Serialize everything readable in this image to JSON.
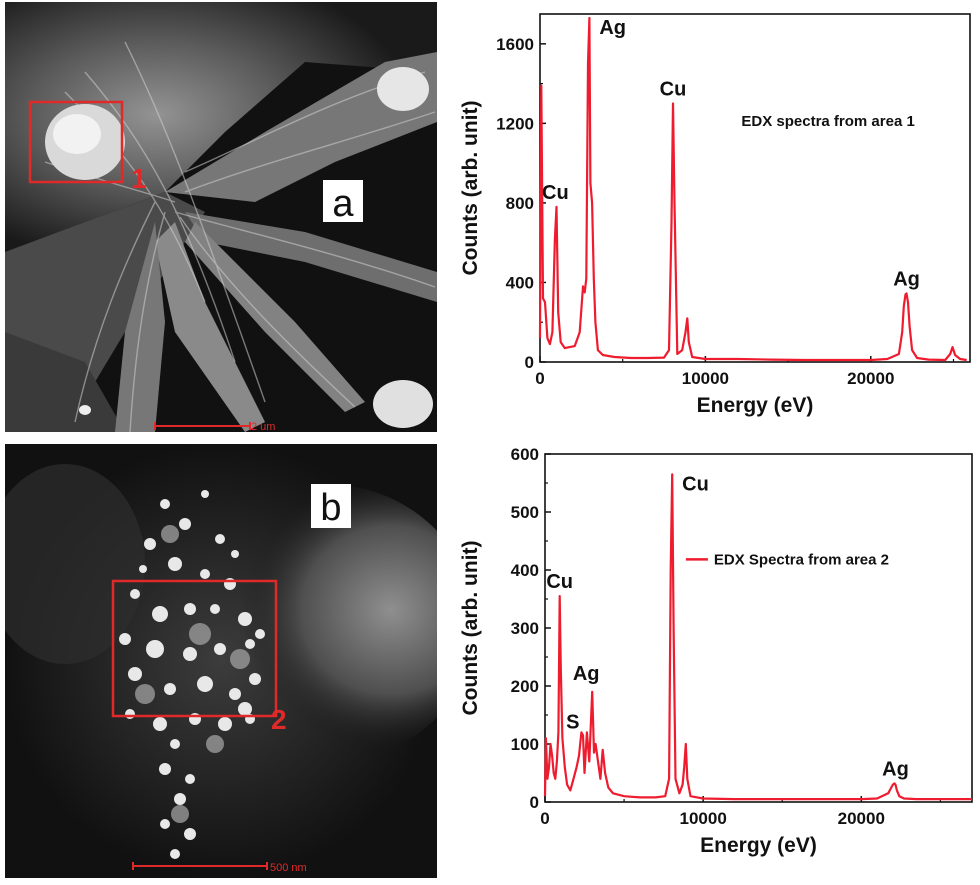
{
  "panel_a": {
    "letter": "a",
    "region_label": "1",
    "scale_bar_text": "2 um"
  },
  "panel_b": {
    "letter": "b",
    "region_label": "2",
    "scale_bar_text": "500 nm"
  },
  "colors": {
    "spectrum": "#ee1c2e",
    "region_box": "#e02a2a",
    "axis": "#111111"
  },
  "chart_data": [
    {
      "type": "line",
      "title": "",
      "xlabel": "Energy (eV)",
      "ylabel": "Counts (arb. unit)",
      "xlim": [
        0,
        26000
      ],
      "ylim": [
        0,
        1750
      ],
      "xticks": [
        0,
        10000,
        20000
      ],
      "yticks": [
        0,
        400,
        800,
        1200,
        1600
      ],
      "legend": {
        "text": "EDX spectra from area 1",
        "show_line": false,
        "placement": "upper-right"
      },
      "series": [
        {
          "x": [
            0,
            80,
            180,
            300,
            450,
            600,
            750,
            900,
            1000,
            1100,
            1250,
            1500,
            1800,
            2100,
            2400,
            2600,
            2700,
            2800,
            2900,
            2984,
            3050,
            3150,
            3250,
            3350,
            3500,
            3800,
            4500,
            5500,
            6500,
            7500,
            7800,
            7950,
            8040,
            8130,
            8300,
            8600,
            8800,
            8905,
            9000,
            9200,
            10000,
            12000,
            14000,
            16000,
            18000,
            20000,
            21000,
            21700,
            21900,
            22000,
            22100,
            22163,
            22250,
            22350,
            22500,
            22800,
            23500,
            24500,
            24800,
            24942,
            25100,
            25400,
            25800
          ],
          "y": [
            120,
            1390,
            320,
            300,
            120,
            90,
            150,
            620,
            780,
            250,
            100,
            70,
            75,
            80,
            150,
            380,
            350,
            420,
            1500,
            1730,
            900,
            800,
            420,
            200,
            60,
            35,
            25,
            20,
            20,
            22,
            60,
            700,
            1300,
            800,
            40,
            60,
            150,
            220,
            100,
            25,
            15,
            15,
            12,
            10,
            10,
            10,
            15,
            40,
            150,
            280,
            340,
            345,
            300,
            180,
            60,
            20,
            12,
            10,
            40,
            75,
            35,
            15,
            10
          ]
        }
      ],
      "annotations": [
        {
          "text": "Cu",
          "x": 930,
          "y": 780
        },
        {
          "text": "Ag",
          "x": 2984,
          "y": 1730
        },
        {
          "text": "Cu",
          "x": 8040,
          "y": 1300
        },
        {
          "text": "Ag",
          "x": 22163,
          "y": 345
        }
      ]
    },
    {
      "type": "line",
      "title": "",
      "xlabel": "Energy (eV)",
      "ylabel": "Counts (arb. unit)",
      "xlim": [
        0,
        27000
      ],
      "ylim": [
        0,
        600
      ],
      "xticks": [
        0,
        10000,
        20000
      ],
      "yticks": [
        0,
        100,
        200,
        300,
        400,
        500,
        600
      ],
      "legend": {
        "text": "EDX Spectra from area 2",
        "show_line": true,
        "placement": "right"
      },
      "series": [
        {
          "x": [
            0,
            60,
            150,
            250,
            350,
            450,
            550,
            650,
            750,
            850,
            930,
            1000,
            1100,
            1250,
            1400,
            1600,
            1800,
            2000,
            2150,
            2300,
            2400,
            2500,
            2650,
            2800,
            2984,
            3100,
            3200,
            3350,
            3500,
            3650,
            3800,
            4000,
            4300,
            5000,
            6000,
            7000,
            7600,
            7850,
            7950,
            8040,
            8130,
            8250,
            8500,
            8700,
            8800,
            8905,
            9000,
            9200,
            10000,
            12000,
            14000,
            16000,
            18000,
            20000,
            21000,
            21700,
            21900,
            22000,
            22100,
            22163,
            22250,
            22400,
            22700,
            23500,
            25000,
            27000
          ],
          "y": [
            10,
            110,
            40,
            60,
            100,
            80,
            50,
            40,
            70,
            120,
            355,
            230,
            110,
            60,
            30,
            20,
            40,
            60,
            80,
            120,
            115,
            50,
            120,
            70,
            190,
            85,
            100,
            70,
            40,
            90,
            50,
            25,
            15,
            10,
            8,
            8,
            10,
            40,
            400,
            565,
            300,
            40,
            15,
            30,
            60,
            100,
            40,
            10,
            6,
            5,
            5,
            5,
            5,
            5,
            6,
            15,
            25,
            30,
            32,
            30,
            20,
            10,
            6,
            5,
            5,
            5
          ]
        }
      ],
      "annotations": [
        {
          "text": "Cu",
          "x": 930,
          "y": 355
        },
        {
          "text": "S",
          "x": 2307,
          "y": 120
        },
        {
          "text": "Ag",
          "x": 2984,
          "y": 190
        },
        {
          "text": "Cu",
          "x": 8040,
          "y": 565
        },
        {
          "text": "Ag",
          "x": 22163,
          "y": 32
        }
      ]
    }
  ]
}
